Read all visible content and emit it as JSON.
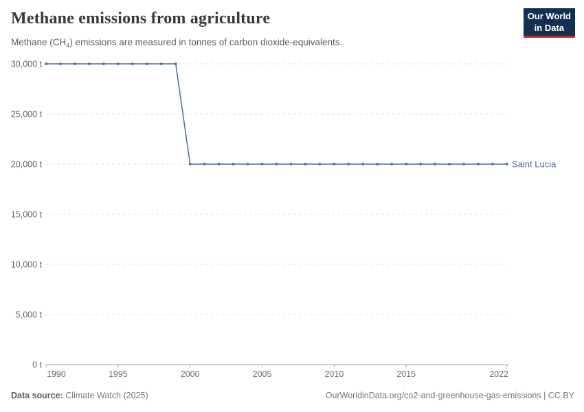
{
  "header": {
    "title": "Methane emissions from agriculture",
    "subtitle_prefix": "Methane (CH",
    "subtitle_sub": "4",
    "subtitle_suffix": ") emissions are measured in tonnes of carbon dioxide-equivalents.",
    "logo": {
      "line1": "Our World",
      "line2": "in Data",
      "bg_color": "#132F51",
      "bar_color": "#C0272D"
    }
  },
  "chart_data": {
    "type": "line",
    "title": "Methane emissions from agriculture",
    "xlabel": "",
    "ylabel": "",
    "xlim": [
      1990,
      2022
    ],
    "ylim": [
      0,
      30000
    ],
    "grid": "horizontal-dashed",
    "x_ticks": [
      1990,
      1995,
      2000,
      2005,
      2010,
      2015,
      2022
    ],
    "y_ticks": [
      0,
      5000,
      10000,
      15000,
      20000,
      25000,
      30000
    ],
    "y_tick_labels": [
      "0 t",
      "5,000 t",
      "10,000 t",
      "15,000 t",
      "20,000 t",
      "25,000 t",
      "30,000 t"
    ],
    "series": [
      {
        "name": "Saint Lucia",
        "color": "#4C6A9C",
        "x": [
          1990,
          1991,
          1992,
          1993,
          1994,
          1995,
          1996,
          1997,
          1998,
          1999,
          2000,
          2001,
          2002,
          2003,
          2004,
          2005,
          2006,
          2007,
          2008,
          2009,
          2010,
          2011,
          2012,
          2013,
          2014,
          2015,
          2016,
          2017,
          2018,
          2019,
          2020,
          2021,
          2022
        ],
        "values": [
          30000,
          30000,
          30000,
          30000,
          30000,
          30000,
          30000,
          30000,
          30000,
          30000,
          20000,
          20000,
          20000,
          20000,
          20000,
          20000,
          20000,
          20000,
          20000,
          20000,
          20000,
          20000,
          20000,
          20000,
          20000,
          20000,
          20000,
          20000,
          20000,
          20000,
          20000,
          20000,
          20000
        ]
      }
    ]
  },
  "footer": {
    "source_label": "Data source:",
    "source_value": " Climate Watch (2025)",
    "note": "OurWorldinData.org/co2-and-greenhouse-gas-emissions | CC BY"
  }
}
